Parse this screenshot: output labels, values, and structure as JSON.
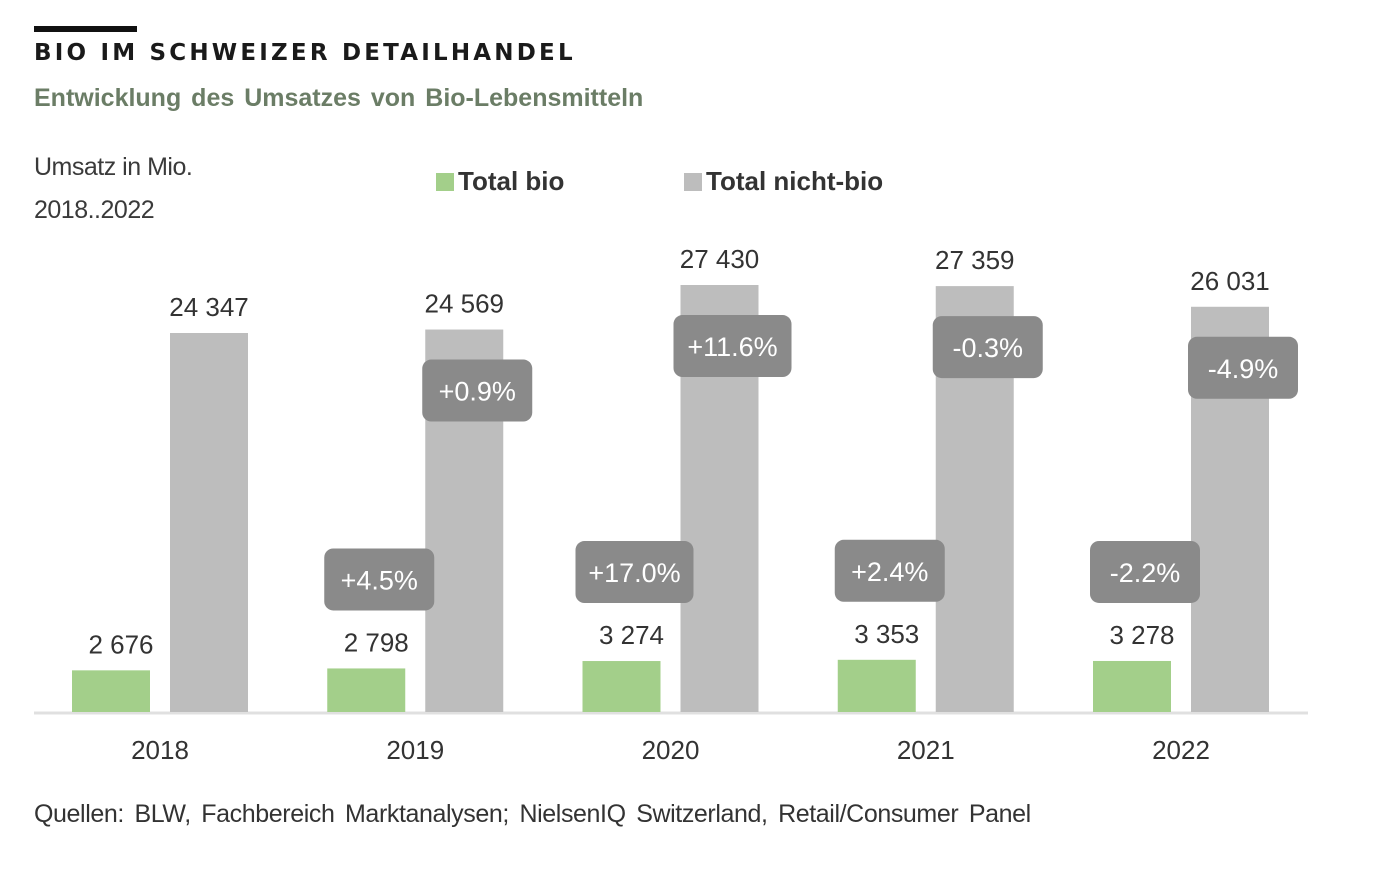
{
  "header": {
    "title": "BIO IM SCHWEIZER DETAILHANDEL",
    "subtitle": "Entwicklung  des Umsatzes  von Bio-Lebensmitteln",
    "unit_line1": "Umsatz in Mio.",
    "unit_line2": "2018..2022"
  },
  "footer": {
    "source": "Quellen: BLW, Fachbereich Marktanalysen; NielsenIQ Switzerland, Retail/Consumer Panel"
  },
  "colors": {
    "bio": "#a3cf8a",
    "nicht_bio": "#bdbdbd",
    "badge": "#8a8a8a",
    "badge_text": "#ffffff",
    "axis": "#e0e0e0",
    "text": "#333333",
    "subtitle": "#6b7d66"
  },
  "chart_data": {
    "type": "bar",
    "title": "BIO IM SCHWEIZER DETAILHANDEL",
    "subtitle": "Entwicklung des Umsatzes von Bio-Lebensmitteln",
    "xlabel": "",
    "ylabel": "Umsatz in Mio.",
    "categories": [
      "2018",
      "2019",
      "2020",
      "2021",
      "2022"
    ],
    "series": [
      {
        "name": "Total bio",
        "values": [
          2676,
          2798,
          3274,
          3353,
          3278
        ],
        "value_labels": [
          "2 676",
          "2 798",
          "3 274",
          "3 353",
          "3 278"
        ],
        "change_labels": [
          null,
          "+4.5%",
          "+17.0%",
          "+2.4%",
          "-2.2%"
        ]
      },
      {
        "name": "Total nicht-bio",
        "values": [
          24347,
          24569,
          27430,
          27359,
          26031
        ],
        "value_labels": [
          "24 347",
          "24 569",
          "27 430",
          "27 359",
          "26 031"
        ],
        "change_labels": [
          null,
          "+0.9%",
          "+11.6%",
          "-0.3%",
          "-4.9%"
        ]
      }
    ],
    "ylim": [
      0,
      27430
    ],
    "grid": false,
    "y_axis_visible": false,
    "legend": "top-center"
  }
}
